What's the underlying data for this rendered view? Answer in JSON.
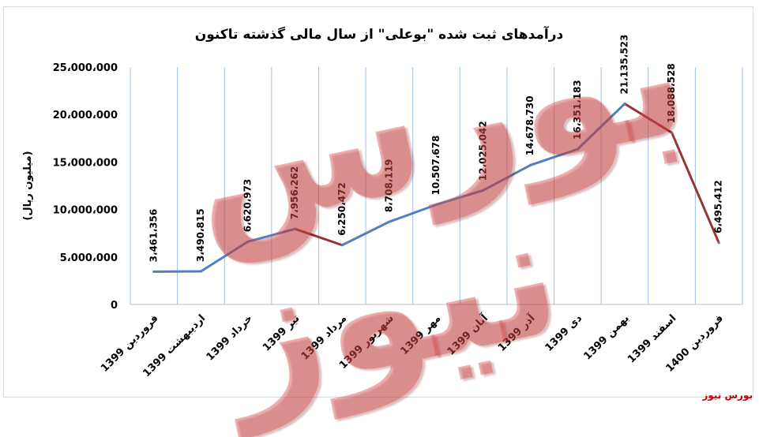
{
  "chart_data": {
    "type": "line",
    "title": "درآمدهای ثبت شده \"بوعلی\" از سال مالی گذشته تاکنون",
    "ylabel": "(میلیون ریال)",
    "xlabel": "",
    "ylim": [
      0,
      25000000
    ],
    "yticks": [
      0,
      5000000,
      10000000,
      15000000,
      20000000,
      25000000
    ],
    "ytick_labels": [
      "0",
      "5،000،000",
      "10،000،000",
      "15،000،000",
      "20،000،000",
      "25،000،000"
    ],
    "grid": "vertical",
    "categories": [
      "فروردین 1399",
      "اردیبهشت 1399",
      "خرداد 1399",
      "تیر 1399",
      "مرداد 1399",
      "شهریور 1399",
      "مهر 1399",
      "آبان 1399",
      "آذر 1399",
      "دی 1399",
      "بهمن 1399",
      "اسفند 1399",
      "فروردین 1400"
    ],
    "values": [
      3461356,
      3490815,
      6620973,
      7956262,
      6250472,
      8708119,
      10507678,
      12025042,
      14678730,
      16351183,
      21135523,
      18088528,
      6495412
    ],
    "data_labels": [
      "3،461،356",
      "3،490،815",
      "6،620،973",
      "7،956،262",
      "6،250،472",
      "8،708،119",
      "10،507،678",
      "12،025،042",
      "14،678،730",
      "16،351،183",
      "21،135،523",
      "18،088،528",
      "6،495،412"
    ],
    "colors": {
      "rising": "#4f81bd",
      "falling": "#943634"
    }
  },
  "watermark": "بورس نیوز",
  "site_label": "بورس نیوز"
}
